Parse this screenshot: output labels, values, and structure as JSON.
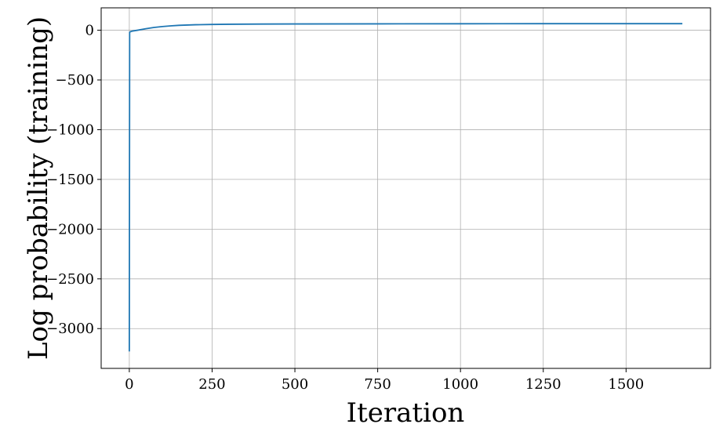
{
  "chart_data": {
    "type": "line",
    "xlabel": "Iteration",
    "ylabel": "Log probability (training)",
    "xlim": [
      -85,
      1755
    ],
    "ylim": [
      -3400,
      225
    ],
    "xticks": [
      0,
      250,
      500,
      750,
      1000,
      1250,
      1500
    ],
    "xtick_labels": [
      "0",
      "250",
      "500",
      "750",
      "1000",
      "1250",
      "1500"
    ],
    "yticks": [
      0,
      -500,
      -1000,
      -1500,
      -2000,
      -2500,
      -3000
    ],
    "ytick_labels": [
      "0",
      "−500",
      "−1000",
      "−1500",
      "−2000",
      "−2500",
      "−3000"
    ],
    "grid": true,
    "line_color": "#1f77b4",
    "series": [
      {
        "x": [
          0,
          1,
          3,
          10,
          25,
          50,
          75,
          100,
          125,
          150,
          175,
          200,
          250,
          300,
          400,
          500,
          750,
          1000,
          1250,
          1500,
          1670
        ],
        "y": [
          -3230,
          -20,
          -15,
          -8,
          0,
          15,
          28,
          37,
          44,
          49,
          52,
          55,
          58,
          60,
          62,
          63,
          64,
          65,
          66,
          66,
          66
        ]
      }
    ]
  }
}
